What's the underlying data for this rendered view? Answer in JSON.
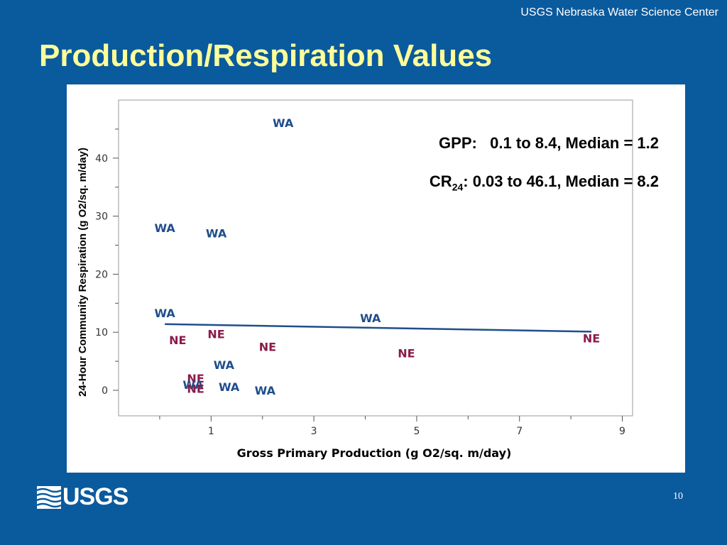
{
  "header": {
    "org": "USGS Nebraska Water Science Center",
    "title": "Production/Respiration Values"
  },
  "annotations": {
    "gpp_label": "GPP:",
    "gpp_text": "0.1 to 8.4, Median = 1.2",
    "cr_main": "CR",
    "cr_sub": "24",
    "cr_text": ": 0.03 to 46.1, Median = 8.2"
  },
  "footer": {
    "logo_text": "USGS",
    "page_number": "10"
  },
  "colors": {
    "background": "#0a5a9e",
    "title": "#ffff99",
    "wa": "#1f4e8c",
    "ne": "#8b1a4a",
    "trend": "#1f4e8c"
  },
  "chart_data": {
    "type": "scatter",
    "xlabel": "Gross Primary Production (g O2/sq. m/day)",
    "ylabel": "24-Hour Community Respiration (g O2/sq. m/day)",
    "xlim": [
      -0.8,
      9.2
    ],
    "ylim": [
      -4.4,
      50
    ],
    "x_ticks": [
      1,
      3,
      5,
      7,
      9
    ],
    "y_ticks": [
      0,
      10,
      20,
      30,
      40
    ],
    "grid": false,
    "legend": "none",
    "points": [
      {
        "label": "WA",
        "x": 2.4,
        "y": 46.1
      },
      {
        "label": "WA",
        "x": 0.1,
        "y": 28.0
      },
      {
        "label": "WA",
        "x": 1.1,
        "y": 27.1
      },
      {
        "label": "WA",
        "x": 0.1,
        "y": 13.3
      },
      {
        "label": "WA",
        "x": 4.1,
        "y": 12.5
      },
      {
        "label": "NE",
        "x": 0.35,
        "y": 8.7
      },
      {
        "label": "NE",
        "x": 1.1,
        "y": 9.7
      },
      {
        "label": "NE",
        "x": 2.1,
        "y": 7.5
      },
      {
        "label": "NE",
        "x": 4.8,
        "y": 6.4
      },
      {
        "label": "NE",
        "x": 8.4,
        "y": 9.0
      },
      {
        "label": "WA",
        "x": 1.25,
        "y": 4.4
      },
      {
        "label": "NE",
        "x": 0.7,
        "y": 2.1
      },
      {
        "label": "WA",
        "x": 0.65,
        "y": 1.0
      },
      {
        "label": "NE",
        "x": 0.7,
        "y": 0.3
      },
      {
        "label": "WA",
        "x": 1.35,
        "y": 0.6
      },
      {
        "label": "WA",
        "x": 2.05,
        "y": 0.0
      }
    ],
    "trend_line": [
      {
        "x": 0.1,
        "y": 11.4
      },
      {
        "x": 8.4,
        "y": 10.1
      }
    ]
  }
}
